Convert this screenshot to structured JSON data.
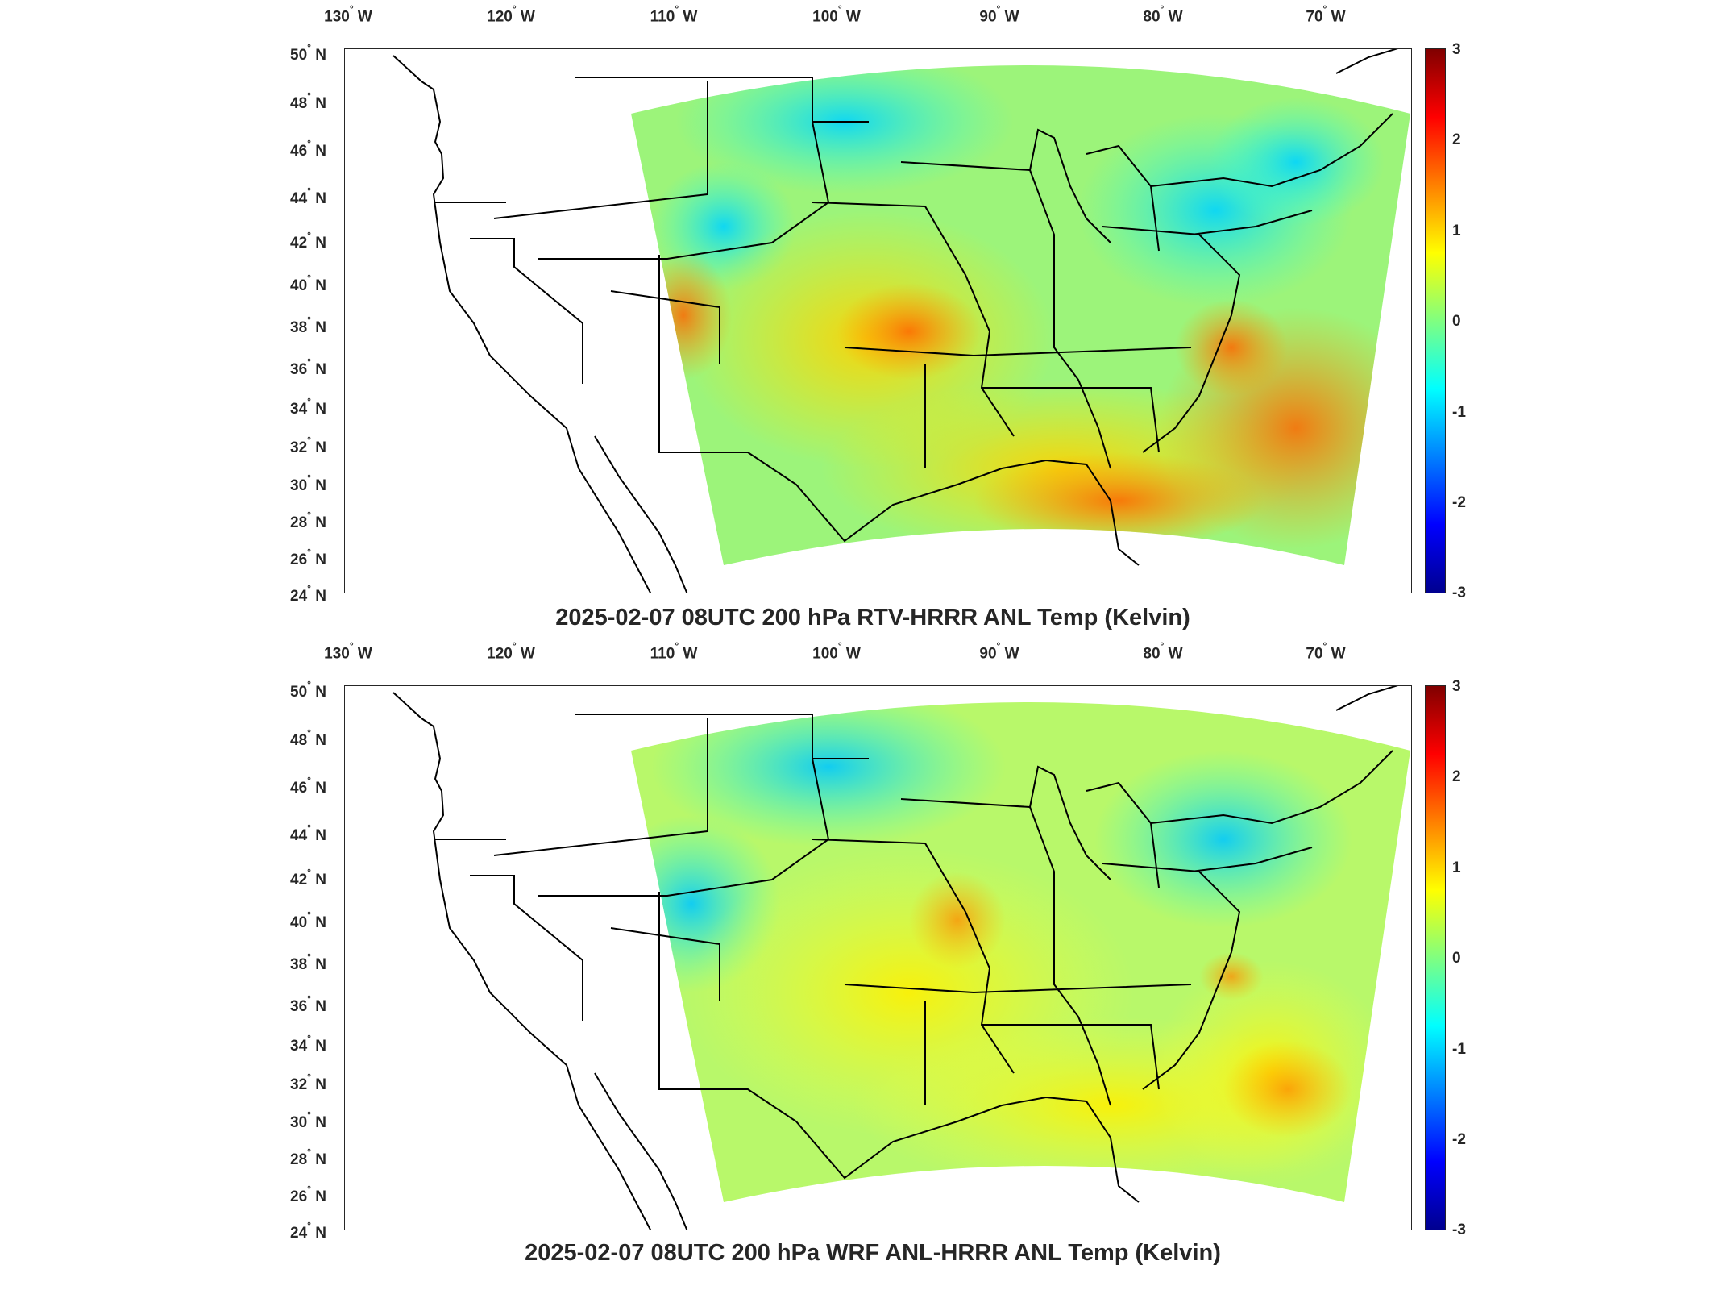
{
  "figure": {
    "lon_ticks": [
      "130",
      "120",
      "110",
      "100",
      "90",
      "80",
      "70"
    ],
    "lon_suffix": "W",
    "lat_ticks": [
      "50",
      "48",
      "46",
      "44",
      "42",
      "40",
      "38",
      "36",
      "34",
      "32",
      "30",
      "28",
      "26",
      "24"
    ],
    "lat_suffix": "N",
    "colorbar_ticks": [
      "3",
      "2",
      "1",
      "0",
      "-1",
      "-2",
      "-3"
    ],
    "colormap": "jet",
    "panels": [
      {
        "title": "2025-02-07 08UTC 200 hPa RTV-HRRR ANL Temp (Kelvin)"
      },
      {
        "title": "2025-02-07 08UTC 200 hPa WRF ANL-HRRR ANL Temp (Kelvin)"
      }
    ]
  },
  "chart_data": [
    {
      "type": "heatmap",
      "title": "2025-02-07 08UTC 200 hPa RTV-HRRR ANL Temp (Kelvin)",
      "xlim": [
        -132,
        -64
      ],
      "ylim": [
        24,
        50
      ],
      "clim": [
        -3,
        3
      ],
      "colorbar_ticks": [
        -3,
        -2,
        -1,
        0,
        1,
        2,
        3
      ]
    },
    {
      "type": "heatmap",
      "title": "2025-02-07 08UTC 200 hPa WRF ANL-HRRR ANL Temp (Kelvin)",
      "xlim": [
        -132,
        -64
      ],
      "ylim": [
        24,
        50
      ],
      "clim": [
        -3,
        3
      ],
      "colorbar_ticks": [
        -3,
        -2,
        -1,
        0,
        1,
        2,
        3
      ]
    }
  ]
}
